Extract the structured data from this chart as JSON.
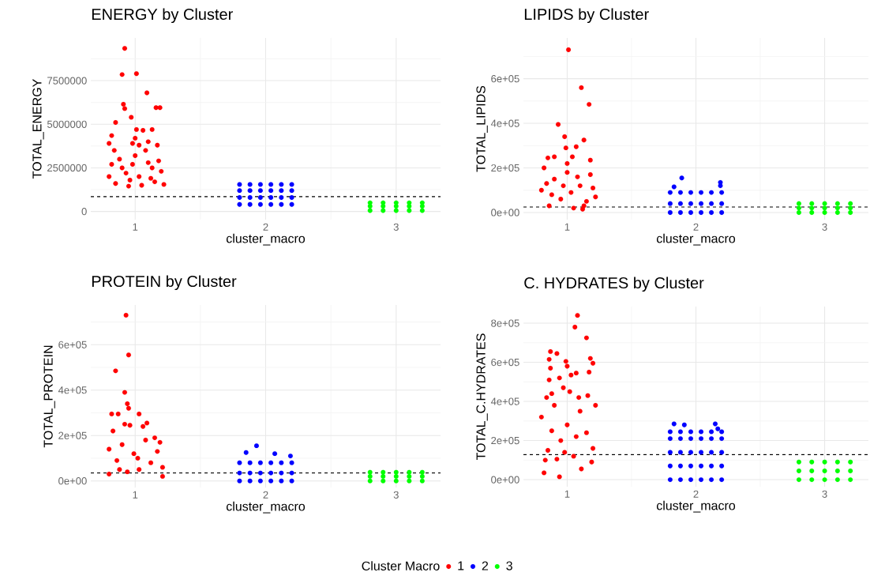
{
  "chart_data": [
    {
      "type": "scatter",
      "title": "ENERGY by Cluster",
      "xlabel": "cluster_macro",
      "ylabel": "TOTAL_ENERGY",
      "marker": "circle",
      "grid": true,
      "xlim": [
        0.66,
        3.34
      ],
      "xticks": [
        1,
        2,
        3
      ],
      "ylim": [
        -470000,
        9950000
      ],
      "yticks": [
        0,
        2500000,
        5000000,
        7500000
      ],
      "ref_lines": [
        {
          "axis": "y",
          "value": 850000,
          "color": "#000000",
          "line_style": "dashed"
        }
      ],
      "series": [
        {
          "color": "#ff0000",
          "x": [
            0.92,
            0.9,
            1.01,
            1.09,
            0.91,
            0.92,
            1.16,
            1.19,
            0.97,
            0.85,
            1.01,
            1.06,
            1.13,
            0.98,
            1.0,
            1.1,
            1.17,
            1.03,
            0.82,
            0.8,
            0.84,
            0.8,
            0.85,
            0.9,
            0.95,
            1.0,
            1.05,
            1.1,
            1.15,
            1.2,
            1.22,
            0.88,
            0.93,
            0.98,
            1.03,
            1.08,
            1.13,
            1.18,
            0.82,
            1.12,
            0.96
          ],
          "values": [
            9350000,
            7850000,
            7900000,
            6800000,
            6150000,
            5900000,
            5950000,
            5950000,
            5400000,
            5100000,
            4700000,
            4650000,
            4700000,
            3900000,
            4200000,
            4000000,
            3800000,
            3800000,
            4350000,
            3900000,
            3500000,
            2000000,
            1600000,
            2500000,
            1450000,
            3200000,
            1500000,
            2800000,
            1700000,
            2300000,
            1550000,
            3000000,
            2200000,
            2700000,
            2000000,
            3500000,
            2500000,
            2900000,
            2700000,
            1900000,
            1800000
          ]
        },
        {
          "color": "#0000ff",
          "x": [
            1.8,
            1.8,
            1.8,
            1.8,
            1.88,
            1.88,
            1.88,
            1.88,
            1.96,
            1.96,
            1.96,
            1.96,
            2.04,
            2.04,
            2.04,
            2.04,
            2.12,
            2.12,
            2.12,
            2.12,
            2.2,
            2.2,
            2.2,
            2.2
          ],
          "values": [
            400000,
            800000,
            1200000,
            1550000,
            400000,
            800000,
            1200000,
            1550000,
            400000,
            800000,
            1200000,
            1550000,
            400000,
            800000,
            1200000,
            1550000,
            400000,
            800000,
            1200000,
            1550000,
            400000,
            800000,
            1200000,
            1550000
          ]
        },
        {
          "color": "#00ff00",
          "x": [
            2.8,
            2.8,
            2.8,
            2.9,
            2.9,
            2.9,
            3.0,
            3.0,
            3.0,
            3.1,
            3.1,
            3.1,
            3.2,
            3.2,
            3.2
          ],
          "values": [
            50000,
            300000,
            500000,
            50000,
            300000,
            500000,
            50000,
            300000,
            500000,
            50000,
            300000,
            500000,
            50000,
            300000,
            500000
          ]
        }
      ]
    },
    {
      "type": "scatter",
      "title": "LIPIDS by Cluster",
      "xlabel": "cluster_macro",
      "ylabel": "TOTAL_LIPIDS",
      "marker": "circle",
      "grid": true,
      "xlim": [
        0.66,
        3.34
      ],
      "xticks": [
        1,
        2,
        3
      ],
      "ylim": [
        -32000,
        783000
      ],
      "yticks": [
        {
          "value": 0,
          "label": "0e+00"
        },
        {
          "value": 200000,
          "label": "2e+05"
        },
        {
          "value": 400000,
          "label": "4e+05"
        },
        {
          "value": 600000,
          "label": "6e+05"
        }
      ],
      "ref_lines": [
        {
          "axis": "y",
          "value": 25000,
          "color": "#000000",
          "line_style": "dashed"
        }
      ],
      "series": [
        {
          "color": "#ff0000",
          "x": [
            1.01,
            1.11,
            1.17,
            0.93,
            0.98,
            1.13,
            0.99,
            1.07,
            1.04,
            0.85,
            0.9,
            1.18,
            1.0,
            0.8,
            0.82,
            0.86,
            0.9,
            0.95,
            1.0,
            1.05,
            1.1,
            1.15,
            1.2,
            1.22,
            0.88,
            0.97,
            1.03,
            1.08,
            1.13,
            1.18,
            1.12,
            0.84
          ],
          "values": [
            730000,
            560000,
            485000,
            395000,
            340000,
            325000,
            290000,
            295000,
            250000,
            245000,
            250000,
            235000,
            220000,
            100000,
            200000,
            30000,
            150000,
            60000,
            180000,
            20000,
            120000,
            50000,
            110000,
            70000,
            80000,
            120000,
            90000,
            160000,
            30000,
            170000,
            15000,
            130000
          ]
        },
        {
          "color": "#0000ff",
          "x": [
            1.89,
            2.19,
            1.83,
            2.19,
            1.8,
            1.8,
            1.8,
            1.88,
            1.88,
            1.88,
            1.96,
            1.96,
            1.96,
            2.04,
            2.04,
            2.04,
            2.12,
            2.12,
            2.12,
            2.2,
            2.2,
            2.2
          ],
          "values": [
            155000,
            135000,
            115000,
            120000,
            0,
            40000,
            90000,
            0,
            40000,
            90000,
            0,
            40000,
            90000,
            0,
            40000,
            90000,
            0,
            40000,
            90000,
            0,
            40000,
            90000
          ]
        },
        {
          "color": "#00ff00",
          "x": [
            2.8,
            2.8,
            2.8,
            2.9,
            2.9,
            2.9,
            3.0,
            3.0,
            3.0,
            3.1,
            3.1,
            3.1,
            3.2,
            3.2,
            3.2
          ],
          "values": [
            0,
            20000,
            40000,
            0,
            20000,
            40000,
            0,
            20000,
            40000,
            0,
            20000,
            40000,
            0,
            20000,
            40000
          ]
        }
      ]
    },
    {
      "type": "scatter",
      "title": "PROTEIN by Cluster",
      "xlabel": "cluster_macro",
      "ylabel": "TOTAL_PROTEIN",
      "marker": "circle",
      "grid": true,
      "xlim": [
        0.66,
        3.34
      ],
      "xticks": [
        1,
        2,
        3
      ],
      "ylim": [
        -29000,
        775000
      ],
      "yticks": [
        {
          "value": 0,
          "label": "0e+00"
        },
        {
          "value": 200000,
          "label": "2e+05"
        },
        {
          "value": 400000,
          "label": "4e+05"
        },
        {
          "value": 600000,
          "label": "6e+05"
        }
      ],
      "ref_lines": [
        {
          "axis": "y",
          "value": 35000,
          "color": "#000000",
          "line_style": "dashed"
        }
      ],
      "series": [
        {
          "color": "#ff0000",
          "x": [
            0.93,
            0.95,
            0.85,
            0.92,
            0.94,
            0.95,
            0.82,
            0.87,
            1.03,
            0.92,
            0.96,
            1.09,
            1.06,
            0.83,
            1.15,
            1.19,
            0.8,
            0.8,
            0.86,
            0.9,
            0.94,
            0.99,
            1.03,
            1.08,
            1.12,
            1.17,
            1.21,
            1.21,
            1.02,
            0.88
          ],
          "values": [
            730000,
            555000,
            485000,
            390000,
            340000,
            320000,
            295000,
            295000,
            295000,
            250000,
            245000,
            255000,
            240000,
            220000,
            190000,
            170000,
            30000,
            140000,
            90000,
            160000,
            40000,
            120000,
            50000,
            180000,
            80000,
            130000,
            60000,
            20000,
            100000,
            50000
          ]
        },
        {
          "color": "#0000ff",
          "x": [
            1.93,
            1.85,
            2.07,
            2.19,
            1.8,
            1.8,
            1.8,
            1.88,
            1.88,
            1.88,
            1.96,
            1.96,
            1.96,
            2.04,
            2.04,
            2.04,
            2.12,
            2.12,
            2.12,
            2.2,
            2.2,
            2.2
          ],
          "values": [
            155000,
            125000,
            120000,
            110000,
            0,
            35000,
            80000,
            0,
            35000,
            80000,
            0,
            35000,
            80000,
            0,
            35000,
            80000,
            0,
            35000,
            80000,
            0,
            35000,
            80000
          ]
        },
        {
          "color": "#00ff00",
          "x": [
            2.8,
            2.8,
            2.8,
            2.9,
            2.9,
            2.9,
            3.0,
            3.0,
            3.0,
            3.1,
            3.1,
            3.1,
            3.2,
            3.2,
            3.2
          ],
          "values": [
            0,
            20000,
            38000,
            0,
            20000,
            38000,
            0,
            20000,
            38000,
            0,
            20000,
            38000,
            0,
            20000,
            38000
          ]
        }
      ]
    },
    {
      "type": "scatter",
      "title": "C. HYDRATES by Cluster",
      "xlabel": "cluster_macro",
      "ylabel": "TOTAL_C.HYDRATES",
      "marker": "circle",
      "grid": true,
      "legend": "bottom",
      "legend_title": "Cluster Macro",
      "xlim": [
        0.66,
        3.34
      ],
      "xticks": [
        1,
        2,
        3
      ],
      "ylim": [
        -36000,
        885000
      ],
      "yticks": [
        {
          "value": 0,
          "label": "0e+00"
        },
        {
          "value": 200000,
          "label": "2e+05"
        },
        {
          "value": 400000,
          "label": "4e+05"
        },
        {
          "value": 600000,
          "label": "6e+05"
        },
        {
          "value": 800000,
          "label": "8e+05"
        }
      ],
      "ref_lines": [
        {
          "axis": "y",
          "value": 128000,
          "color": "#000000",
          "line_style": "dashed"
        }
      ],
      "series": [
        {
          "name": "1",
          "color": "#ff0000",
          "x": [
            1.08,
            1.06,
            1.15,
            0.87,
            0.86,
            0.92,
            0.99,
            1.18,
            1.2,
            0.87,
            1.0,
            1.17,
            1.07,
            1.03,
            0.86,
            0.94,
            0.88,
            0.97,
            1.02,
            1.16,
            1.09,
            0.84,
            0.82,
            0.94,
            1.11,
            1.19,
            0.83,
            0.92,
            0.8,
            0.85,
            0.9,
            0.95,
            1.0,
            1.05,
            1.1,
            1.15,
            1.2,
            1.22,
            0.88,
            0.98,
            1.07
          ],
          "values": [
            840000,
            780000,
            725000,
            655000,
            615000,
            645000,
            605000,
            620000,
            595000,
            570000,
            580000,
            550000,
            545000,
            535000,
            510000,
            520000,
            440000,
            470000,
            450000,
            430000,
            420000,
            420000,
            35000,
            15000,
            55000,
            90000,
            100000,
            105000,
            320000,
            150000,
            380000,
            200000,
            280000,
            120000,
            350000,
            240000,
            160000,
            380000,
            250000,
            140000,
            220000
          ]
        },
        {
          "name": "2",
          "color": "#0000ff",
          "x": [
            1.83,
            1.91,
            2.15,
            2.17,
            1.8,
            1.8,
            1.8,
            1.8,
            1.8,
            1.88,
            1.88,
            1.88,
            1.88,
            1.88,
            1.96,
            1.96,
            1.96,
            1.96,
            1.96,
            2.04,
            2.04,
            2.04,
            2.04,
            2.04,
            2.12,
            2.12,
            2.12,
            2.12,
            2.12,
            2.2,
            2.2,
            2.2,
            2.2,
            2.2
          ],
          "values": [
            285000,
            280000,
            285000,
            260000,
            0,
            70000,
            140000,
            210000,
            245000,
            0,
            70000,
            140000,
            210000,
            245000,
            0,
            70000,
            140000,
            210000,
            245000,
            0,
            70000,
            140000,
            210000,
            245000,
            0,
            70000,
            140000,
            210000,
            245000,
            0,
            70000,
            140000,
            210000,
            245000
          ]
        },
        {
          "name": "3",
          "color": "#00ff00",
          "x": [
            2.8,
            2.8,
            2.8,
            2.9,
            2.9,
            2.9,
            3.0,
            3.0,
            3.0,
            3.1,
            3.1,
            3.1,
            3.2,
            3.2,
            3.2
          ],
          "values": [
            0,
            45000,
            90000,
            0,
            45000,
            90000,
            0,
            45000,
            90000,
            0,
            45000,
            90000,
            0,
            45000,
            90000
          ]
        }
      ]
    }
  ]
}
